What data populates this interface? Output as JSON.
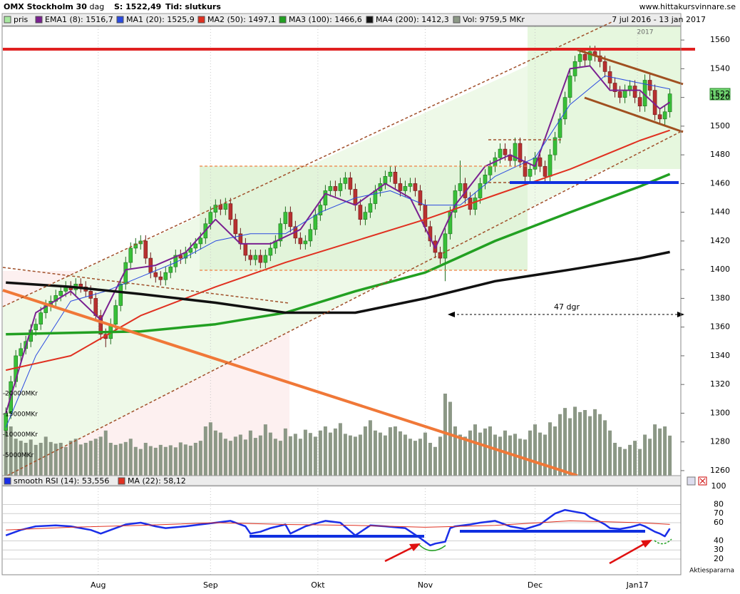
{
  "chart_data": {
    "type": "candlestick",
    "title": "OMX Stockholm 30",
    "subtitle": "- dag",
    "price_text": "S: 1522,49",
    "time_text": "Tid: slutkurs",
    "source": "www.hittakursvinnare.se",
    "date_range": "7 jul 2016 - 13 jan 2017",
    "year_label": "2017",
    "annotation": "47 dgr",
    "credit": "Aktiespararna",
    "last_label": "1522",
    "xlim": [
      -0.6,
      135.2
    ],
    "xticks": [
      {
        "value": 18.5,
        "label": "Aug"
      },
      {
        "value": 41,
        "label": "Sep"
      },
      {
        "value": 62.5,
        "label": "Okt"
      },
      {
        "value": 84,
        "label": "Nov"
      },
      {
        "value": 106,
        "label": "Dec"
      },
      {
        "value": 126.5,
        "label": "Jan17"
      }
    ],
    "ylim": [
      1256.5,
      1569.5
    ],
    "yticks": [
      1260,
      1280,
      1300,
      1320,
      1340,
      1360,
      1380,
      1400,
      1420,
      1440,
      1460,
      1480,
      1500,
      1520,
      1540,
      1560
    ],
    "candles": {
      "name": "pris",
      "color": "#a8e8a0",
      "up_color": "#38c038",
      "down_color": "#b83030",
      "open": [
        1288,
        1300,
        1322,
        1340,
        1345,
        1350,
        1358,
        1362,
        1370,
        1375,
        1378,
        1382,
        1385,
        1388,
        1386,
        1390,
        1388,
        1385,
        1380,
        1368,
        1355,
        1352,
        1362,
        1375,
        1390,
        1405,
        1415,
        1418,
        1420,
        1408,
        1398,
        1395,
        1393,
        1398,
        1402,
        1410,
        1408,
        1412,
        1415,
        1418,
        1422,
        1432,
        1440,
        1445,
        1442,
        1446,
        1435,
        1425,
        1418,
        1410,
        1407,
        1410,
        1405,
        1410,
        1415,
        1420,
        1432,
        1440,
        1430,
        1422,
        1418,
        1420,
        1428,
        1438,
        1445,
        1455,
        1458,
        1455,
        1460,
        1464,
        1456,
        1445,
        1435,
        1440,
        1446,
        1455,
        1460,
        1465,
        1468,
        1460,
        1455,
        1458,
        1460,
        1455,
        1445,
        1430,
        1420,
        1412,
        1408,
        1425,
        1440,
        1455,
        1460,
        1450,
        1442,
        1450,
        1460,
        1466,
        1472,
        1478,
        1484,
        1480,
        1476,
        1488,
        1475,
        1465,
        1470,
        1478,
        1472,
        1465,
        1480,
        1492,
        1505,
        1520,
        1535,
        1545,
        1550,
        1546,
        1552,
        1549,
        1545,
        1538,
        1530,
        1524,
        1520,
        1525,
        1528,
        1520,
        1514,
        1532,
        1525,
        1508,
        1505,
        1510
      ],
      "high": [
        1304,
        1326,
        1344,
        1349,
        1354,
        1362,
        1366,
        1374,
        1379,
        1382,
        1386,
        1389,
        1392,
        1392,
        1394,
        1394,
        1392,
        1389,
        1384,
        1372,
        1359,
        1366,
        1379,
        1394,
        1409,
        1419,
        1422,
        1424,
        1424,
        1412,
        1402,
        1399,
        1402,
        1406,
        1414,
        1414,
        1416,
        1419,
        1422,
        1426,
        1436,
        1444,
        1449,
        1449,
        1450,
        1450,
        1439,
        1429,
        1422,
        1414,
        1414,
        1414,
        1414,
        1419,
        1424,
        1436,
        1444,
        1444,
        1434,
        1426,
        1424,
        1432,
        1442,
        1449,
        1459,
        1462,
        1462,
        1464,
        1468,
        1468,
        1460,
        1449,
        1444,
        1450,
        1459,
        1464,
        1469,
        1472,
        1472,
        1464,
        1462,
        1464,
        1464,
        1459,
        1449,
        1434,
        1424,
        1416,
        1429,
        1444,
        1459,
        1476,
        1464,
        1454,
        1454,
        1464,
        1470,
        1476,
        1482,
        1488,
        1488,
        1484,
        1492,
        1492,
        1479,
        1474,
        1482,
        1482,
        1476,
        1484,
        1496,
        1509,
        1524,
        1539,
        1549,
        1554,
        1554,
        1556,
        1556,
        1553,
        1549,
        1542,
        1534,
        1528,
        1529,
        1532,
        1532,
        1524,
        1536,
        1536,
        1529,
        1512,
        1514,
        1526
      ],
      "low": [
        1284,
        1296,
        1318,
        1336,
        1341,
        1346,
        1354,
        1358,
        1366,
        1371,
        1374,
        1378,
        1381,
        1382,
        1382,
        1384,
        1381,
        1376,
        1364,
        1351,
        1346,
        1348,
        1358,
        1371,
        1386,
        1401,
        1411,
        1414,
        1404,
        1394,
        1391,
        1389,
        1389,
        1394,
        1398,
        1404,
        1404,
        1408,
        1411,
        1414,
        1418,
        1428,
        1436,
        1438,
        1438,
        1431,
        1421,
        1414,
        1406,
        1403,
        1403,
        1401,
        1401,
        1406,
        1411,
        1416,
        1428,
        1426,
        1418,
        1414,
        1414,
        1416,
        1424,
        1434,
        1441,
        1451,
        1451,
        1451,
        1456,
        1452,
        1441,
        1431,
        1431,
        1436,
        1442,
        1451,
        1456,
        1461,
        1456,
        1451,
        1451,
        1454,
        1451,
        1441,
        1426,
        1416,
        1408,
        1404,
        1392,
        1421,
        1436,
        1451,
        1446,
        1438,
        1438,
        1446,
        1456,
        1462,
        1468,
        1474,
        1476,
        1472,
        1472,
        1471,
        1461,
        1461,
        1466,
        1468,
        1461,
        1461,
        1476,
        1488,
        1501,
        1516,
        1531,
        1541,
        1542,
        1542,
        1545,
        1541,
        1534,
        1526,
        1520,
        1516,
        1516,
        1521,
        1516,
        1510,
        1510,
        1521,
        1504,
        1501,
        1501,
        1506
      ],
      "close": [
        1300,
        1322,
        1340,
        1345,
        1350,
        1358,
        1362,
        1370,
        1375,
        1378,
        1382,
        1385,
        1388,
        1386,
        1390,
        1388,
        1385,
        1380,
        1368,
        1355,
        1352,
        1362,
        1375,
        1390,
        1405,
        1415,
        1418,
        1420,
        1408,
        1398,
        1395,
        1393,
        1398,
        1402,
        1410,
        1408,
        1412,
        1415,
        1418,
        1422,
        1432,
        1440,
        1445,
        1442,
        1446,
        1435,
        1425,
        1418,
        1410,
        1407,
        1410,
        1405,
        1410,
        1415,
        1420,
        1432,
        1440,
        1430,
        1422,
        1418,
        1420,
        1428,
        1438,
        1445,
        1455,
        1458,
        1455,
        1460,
        1464,
        1456,
        1445,
        1435,
        1440,
        1446,
        1455,
        1460,
        1465,
        1468,
        1460,
        1455,
        1458,
        1460,
        1455,
        1445,
        1430,
        1420,
        1412,
        1408,
        1425,
        1440,
        1455,
        1460,
        1450,
        1442,
        1450,
        1460,
        1466,
        1472,
        1478,
        1484,
        1480,
        1476,
        1488,
        1475,
        1465,
        1470,
        1478,
        1472,
        1465,
        1480,
        1492,
        1505,
        1520,
        1535,
        1545,
        1550,
        1546,
        1552,
        1549,
        1545,
        1538,
        1530,
        1524,
        1520,
        1525,
        1528,
        1520,
        1514,
        1532,
        1525,
        1508,
        1505,
        1510,
        1522.49
      ]
    },
    "lines": [
      {
        "name": "EMA1 (8): 1516,7",
        "color": "#7a2090",
        "width": 2,
        "x": [
          0,
          6,
          13,
          19,
          24,
          30,
          36,
          42,
          47,
          53,
          59,
          64,
          70,
          76,
          81,
          86,
          90,
          96,
          101,
          106,
          113,
          117,
          121,
          127,
          131,
          133
        ],
        "values": [
          1300,
          1370,
          1385,
          1365,
          1400,
          1403,
          1412,
          1435,
          1418,
          1418,
          1428,
          1453,
          1445,
          1460,
          1450,
          1415,
          1445,
          1472,
          1480,
          1472,
          1540,
          1542,
          1525,
          1525,
          1512,
          1516.7
        ]
      },
      {
        "name": "MA1 (20): 1525,9",
        "color": "#2a4ae0",
        "width": 1,
        "x": [
          0,
          6,
          13,
          20,
          27,
          34,
          42,
          49,
          56,
          63,
          70,
          77,
          84,
          91,
          98,
          106,
          113,
          120,
          127,
          133
        ],
        "values": [
          1290,
          1340,
          1378,
          1385,
          1395,
          1405,
          1420,
          1425,
          1425,
          1440,
          1450,
          1455,
          1445,
          1445,
          1465,
          1478,
          1515,
          1535,
          1530,
          1525.9
        ]
      },
      {
        "name": "MA2 (50): 1497,1",
        "color": "#e03020",
        "width": 2,
        "x": [
          0,
          13,
          27,
          42,
          56,
          70,
          84,
          98,
          113,
          127,
          133
        ],
        "values": [
          1330,
          1340,
          1368,
          1388,
          1405,
          1420,
          1435,
          1452,
          1470,
          1490,
          1497.1
        ]
      },
      {
        "name": "MA3 (100): 1466,6",
        "color": "#22a022",
        "width": 3.5,
        "x": [
          0,
          13,
          27,
          42,
          56,
          70,
          84,
          98,
          113,
          127,
          133
        ],
        "values": [
          1355,
          1356,
          1357,
          1362,
          1370,
          1385,
          1398,
          1420,
          1440,
          1458,
          1466.6
        ]
      },
      {
        "name": "MA4 (200): 1412,3",
        "color": "#111111",
        "width": 3.5,
        "x": [
          0,
          13,
          27,
          42,
          56,
          70,
          84,
          98,
          113,
          127,
          133
        ],
        "values": [
          1391,
          1388,
          1383,
          1377,
          1370,
          1370,
          1380,
          1392,
          1400,
          1408,
          1412.3
        ]
      }
    ],
    "volume": {
      "name": "Vol: 9759,5 MKr",
      "color": "#8c9886",
      "ylim": [
        0,
        20000
      ],
      "yticks": [
        {
          "value": 5000,
          "label": "5000MKr"
        },
        {
          "value": 10000,
          "label": "10000MKr"
        },
        {
          "value": 15000,
          "label": "15000MKr"
        },
        {
          "value": 20000,
          "label": "20000MKr"
        }
      ],
      "values": [
        14000,
        12000,
        9000,
        8500,
        8000,
        8800,
        7500,
        8000,
        9500,
        8200,
        7800,
        8000,
        7000,
        8500,
        9000,
        7600,
        8000,
        8500,
        9000,
        9500,
        11000,
        8000,
        7500,
        7800,
        8200,
        9000,
        7000,
        6500,
        8000,
        7200,
        6800,
        7500,
        7000,
        7400,
        6900,
        8100,
        7600,
        7300,
        8000,
        8500,
        12000,
        13000,
        11000,
        10500,
        9000,
        8500,
        9500,
        10000,
        8800,
        11000,
        9200,
        9800,
        12500,
        10500,
        9000,
        8500,
        11500,
        9600,
        10200,
        9000,
        11200,
        10400,
        9500,
        11000,
        12000,
        10500,
        11500,
        12800,
        10200,
        9800,
        9500,
        10000,
        12000,
        13500,
        11000,
        10500,
        9800,
        11800,
        12000,
        10800,
        10000,
        9000,
        8500,
        9000,
        10500,
        8000,
        7000,
        9500,
        20000,
        18000,
        12000,
        10000,
        9500,
        11000,
        12500,
        10500,
        11500,
        12000,
        10000,
        9500,
        11000,
        9800,
        10200,
        9000,
        8800,
        11000,
        12500,
        10500,
        10000,
        13000,
        12000,
        15000,
        16500,
        14000,
        16800,
        15500,
        16000,
        14500,
        16200,
        15000,
        13500,
        11000,
        8000,
        7000,
        6500,
        7500,
        8500,
        6500,
        10000,
        9000,
        12500,
        11500,
        12000,
        9759.5
      ]
    },
    "rsi": {
      "ylim": [
        2.7,
        100.8
      ],
      "yticks": [
        20,
        30,
        40,
        60,
        70,
        80,
        100
      ],
      "series": [
        {
          "name": "smooth RSI (14): 53,556",
          "color": "#1a2ee8",
          "width": 2.5,
          "x": [
            0,
            3,
            6,
            10,
            13,
            17,
            19,
            22,
            24,
            27,
            30,
            32,
            36,
            39,
            42,
            45,
            48,
            49,
            51,
            53,
            56,
            57,
            60,
            64,
            67,
            70,
            73,
            76,
            80,
            83,
            85,
            86,
            88,
            89,
            90,
            93,
            95,
            98,
            101,
            104,
            107,
            110,
            112,
            114,
            116,
            117,
            119,
            120,
            121,
            123,
            125,
            127,
            128,
            129,
            130,
            131,
            132,
            133
          ],
          "values": [
            46,
            52,
            56,
            57,
            56,
            52,
            48,
            54,
            58,
            60,
            56,
            54,
            56,
            58,
            60,
            62,
            56,
            48,
            50,
            54,
            58,
            48,
            56,
            62,
            60,
            46,
            57,
            56,
            54,
            43,
            35,
            37,
            39,
            54,
            56,
            58,
            60,
            62,
            56,
            53,
            58,
            70,
            74,
            72,
            70,
            66,
            61,
            58,
            54,
            53,
            55,
            58,
            56,
            53,
            50,
            48,
            45,
            53.556
          ]
        },
        {
          "name": "MA (22): 58,12",
          "color": "#e03020",
          "width": 1,
          "x": [
            0,
            13,
            27,
            42,
            56,
            70,
            84,
            98,
            113,
            127,
            133
          ],
          "values": [
            52,
            55,
            57,
            60,
            58,
            57,
            55,
            57,
            62,
            60,
            58.12
          ]
        }
      ]
    }
  }
}
